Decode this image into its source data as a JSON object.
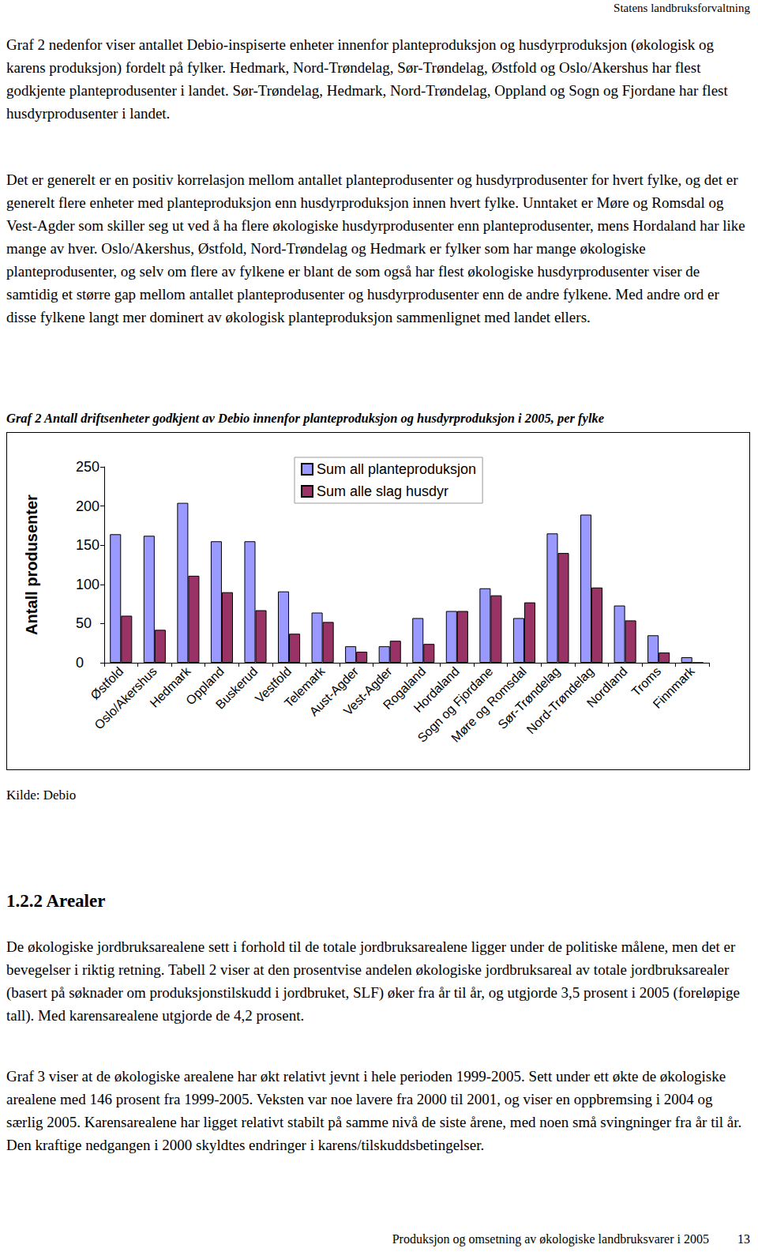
{
  "header": "Statens landbruksforvaltning",
  "text_before": [
    "Graf 2 nedenfor viser antallet Debio-inspiserte enheter innenfor planteproduksjon og husdyrproduksjon (økologisk og karens produksjon) fordelt på fylker. Hedmark, Nord-Trøndelag, Sør-Trøndelag, Østfold og Oslo/Akershus har flest godkjente planteprodusenter i landet. Sør-Trøndelag, Hedmark, Nord-Trøndelag, Oppland og Sogn og Fjordane har flest husdyrprodusenter i landet.",
    "Det er generelt er en positiv korrelasjon mellom antallet planteprodusenter og husdyrprodusenter for hvert fylke, og det er generelt flere enheter med planteproduksjon enn husdyrproduksjon innen hvert fylke. Unntaket er Møre og Romsdal og Vest-Agder som skiller seg ut ved å ha flere økologiske husdyrprodusenter enn planteprodusenter, mens Hordaland har like mange av hver. Oslo/Akershus, Østfold, Nord-Trøndelag og Hedmark er fylker som har mange økologiske planteprodusenter, og selv om flere av fylkene er blant de som også har flest økologiske husdyrprodusenter viser de samtidig et større gap mellom antallet planteprodusenter og husdyrprodusenter enn de andre fylkene. Med andre ord er disse fylkene langt mer dominert av økologisk planteproduksjon sammenlignet med landet ellers."
  ],
  "chart_caption": "Graf 2 Antall driftsenheter godkjent av Debio innenfor planteproduksjon og husdyrproduksjon i 2005, per fylke",
  "chart_data": {
    "type": "bar",
    "y_label": "Antall produsenter",
    "categories": [
      "Østfold",
      "Oslo/Akershus",
      "Hedmark",
      "Oppland",
      "Buskerud",
      "Vestfold",
      "Telemark",
      "Aust-Agder",
      "Vest-Agder",
      "Rogaland",
      "Hordaland",
      "Sogn og Fjordane",
      "Møre og Romsdal",
      "Sør-Trøndelag",
      "Nord-Trøndelag",
      "Nordland",
      "Troms",
      "Finnmark"
    ],
    "series": [
      {
        "name": "Sum all planteproduksjon",
        "color": "#9999ff",
        "values": [
          164,
          162,
          204,
          155,
          155,
          91,
          64,
          21,
          21,
          57,
          66,
          95,
          57,
          165,
          189,
          73,
          35,
          7
        ]
      },
      {
        "name": "Sum alle slag husdyr",
        "color": "#993366",
        "values": [
          60,
          42,
          111,
          90,
          67,
          37,
          52,
          14,
          28,
          24,
          66,
          86,
          77,
          140,
          96,
          54,
          13,
          0
        ]
      }
    ],
    "ylim": [
      0,
      250
    ],
    "yticks": [
      0,
      50,
      100,
      150,
      200,
      250
    ],
    "grid": false,
    "legend": "top"
  },
  "source": "Kilde: Debio",
  "section_heading": "1.2.2 Arealer",
  "text_after": [
    "De økologiske jordbruksarealene sett i forhold til de totale jordbruksarealene ligger under de politiske målene, men det er bevegelser i riktig retning. Tabell 2 viser at den prosentvise andelen økologiske jordbruksareal av totale jordbruksarealer (basert på søknader om produksjonstilskudd i jordbruket, SLF) øker fra år til år, og utgjorde 3,5 prosent i 2005 (foreløpige tall). Med karensarealene utgjorde de 4,2 prosent.",
    "Graf 3 viser at de økologiske arealene har økt relativt jevnt i hele perioden 1999-2005. Sett under ett økte de økologiske arealene med 146 prosent fra 1999-2005. Veksten var noe lavere fra 2000 til 2001, og viser en oppbremsing i 2004 og særlig 2005. Karensarealene har ligget relativt stabilt på samme nivå de siste årene, med noen små svingninger fra år til år. Den kraftige nedgangen i 2000 skyldtes endringer i karens/tilskuddsbetingelser."
  ],
  "footer": {
    "text": "Produksjon og omsetning av økologiske landbruksvarer i 2005",
    "page": "13"
  }
}
